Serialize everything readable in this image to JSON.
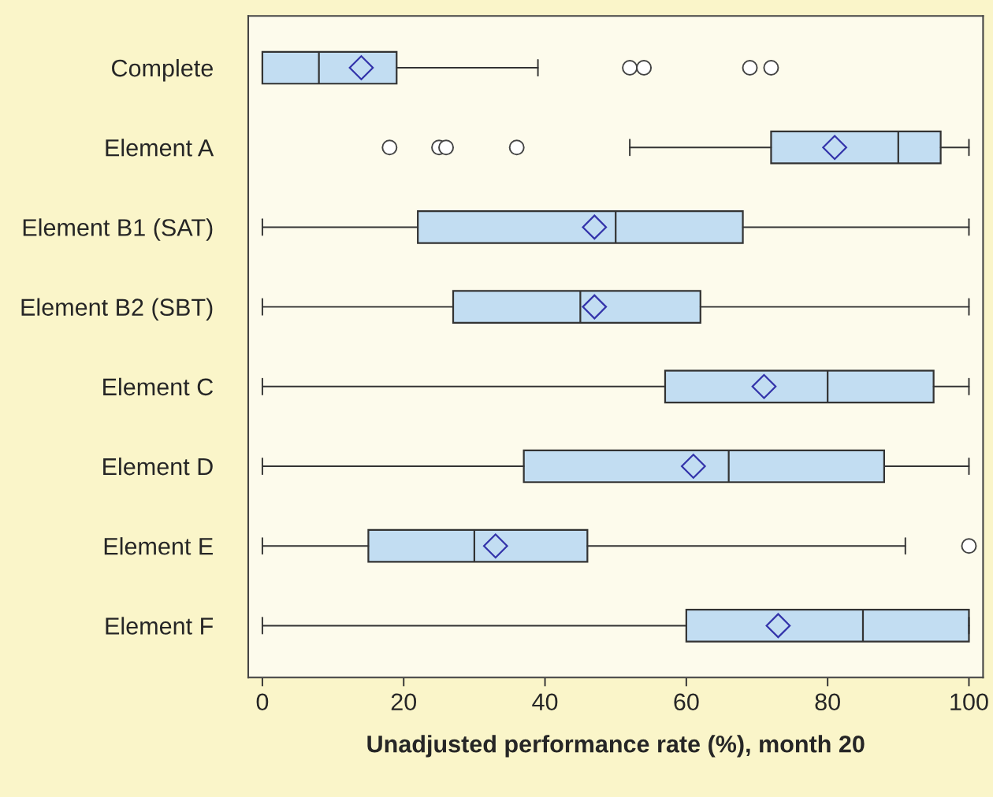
{
  "chart_data": {
    "type": "box",
    "orientation": "horizontal",
    "xlabel": "Unadjusted performance rate (%), month 20",
    "categories": [
      "Complete",
      "Element A",
      "Element B1 (SAT)",
      "Element B2 (SBT)",
      "Element C",
      "Element D",
      "Element E",
      "Element F"
    ],
    "boxes": [
      {
        "low": 0,
        "q1": 0,
        "median": 8,
        "q3": 19,
        "high": 39,
        "mean": 14,
        "outliers": [
          52,
          54,
          69,
          72
        ]
      },
      {
        "low": 52,
        "q1": 72,
        "median": 90,
        "q3": 96,
        "high": 100,
        "mean": 81,
        "outliers": [
          18,
          25,
          26,
          36
        ]
      },
      {
        "low": 0,
        "q1": 22,
        "median": 50,
        "q3": 68,
        "high": 100,
        "mean": 47
      },
      {
        "low": 0,
        "q1": 27,
        "median": 45,
        "q3": 62,
        "high": 100,
        "mean": 47
      },
      {
        "low": 0,
        "q1": 57,
        "median": 80,
        "q3": 95,
        "high": 100,
        "mean": 71
      },
      {
        "low": 0,
        "q1": 37,
        "median": 66,
        "q3": 88,
        "high": 100,
        "mean": 61
      },
      {
        "low": 0,
        "q1": 15,
        "median": 30,
        "q3": 46,
        "high": 91,
        "mean": 33,
        "outliers": [
          100
        ]
      },
      {
        "low": 0,
        "q1": 60,
        "median": 85,
        "q3": 100,
        "high": 100,
        "mean": 73
      }
    ],
    "color": "#c2ddf2",
    "xlim": [
      -2,
      102
    ],
    "xticks": [
      0,
      20,
      40,
      60,
      80,
      100
    ],
    "grid": false,
    "legend": false
  }
}
